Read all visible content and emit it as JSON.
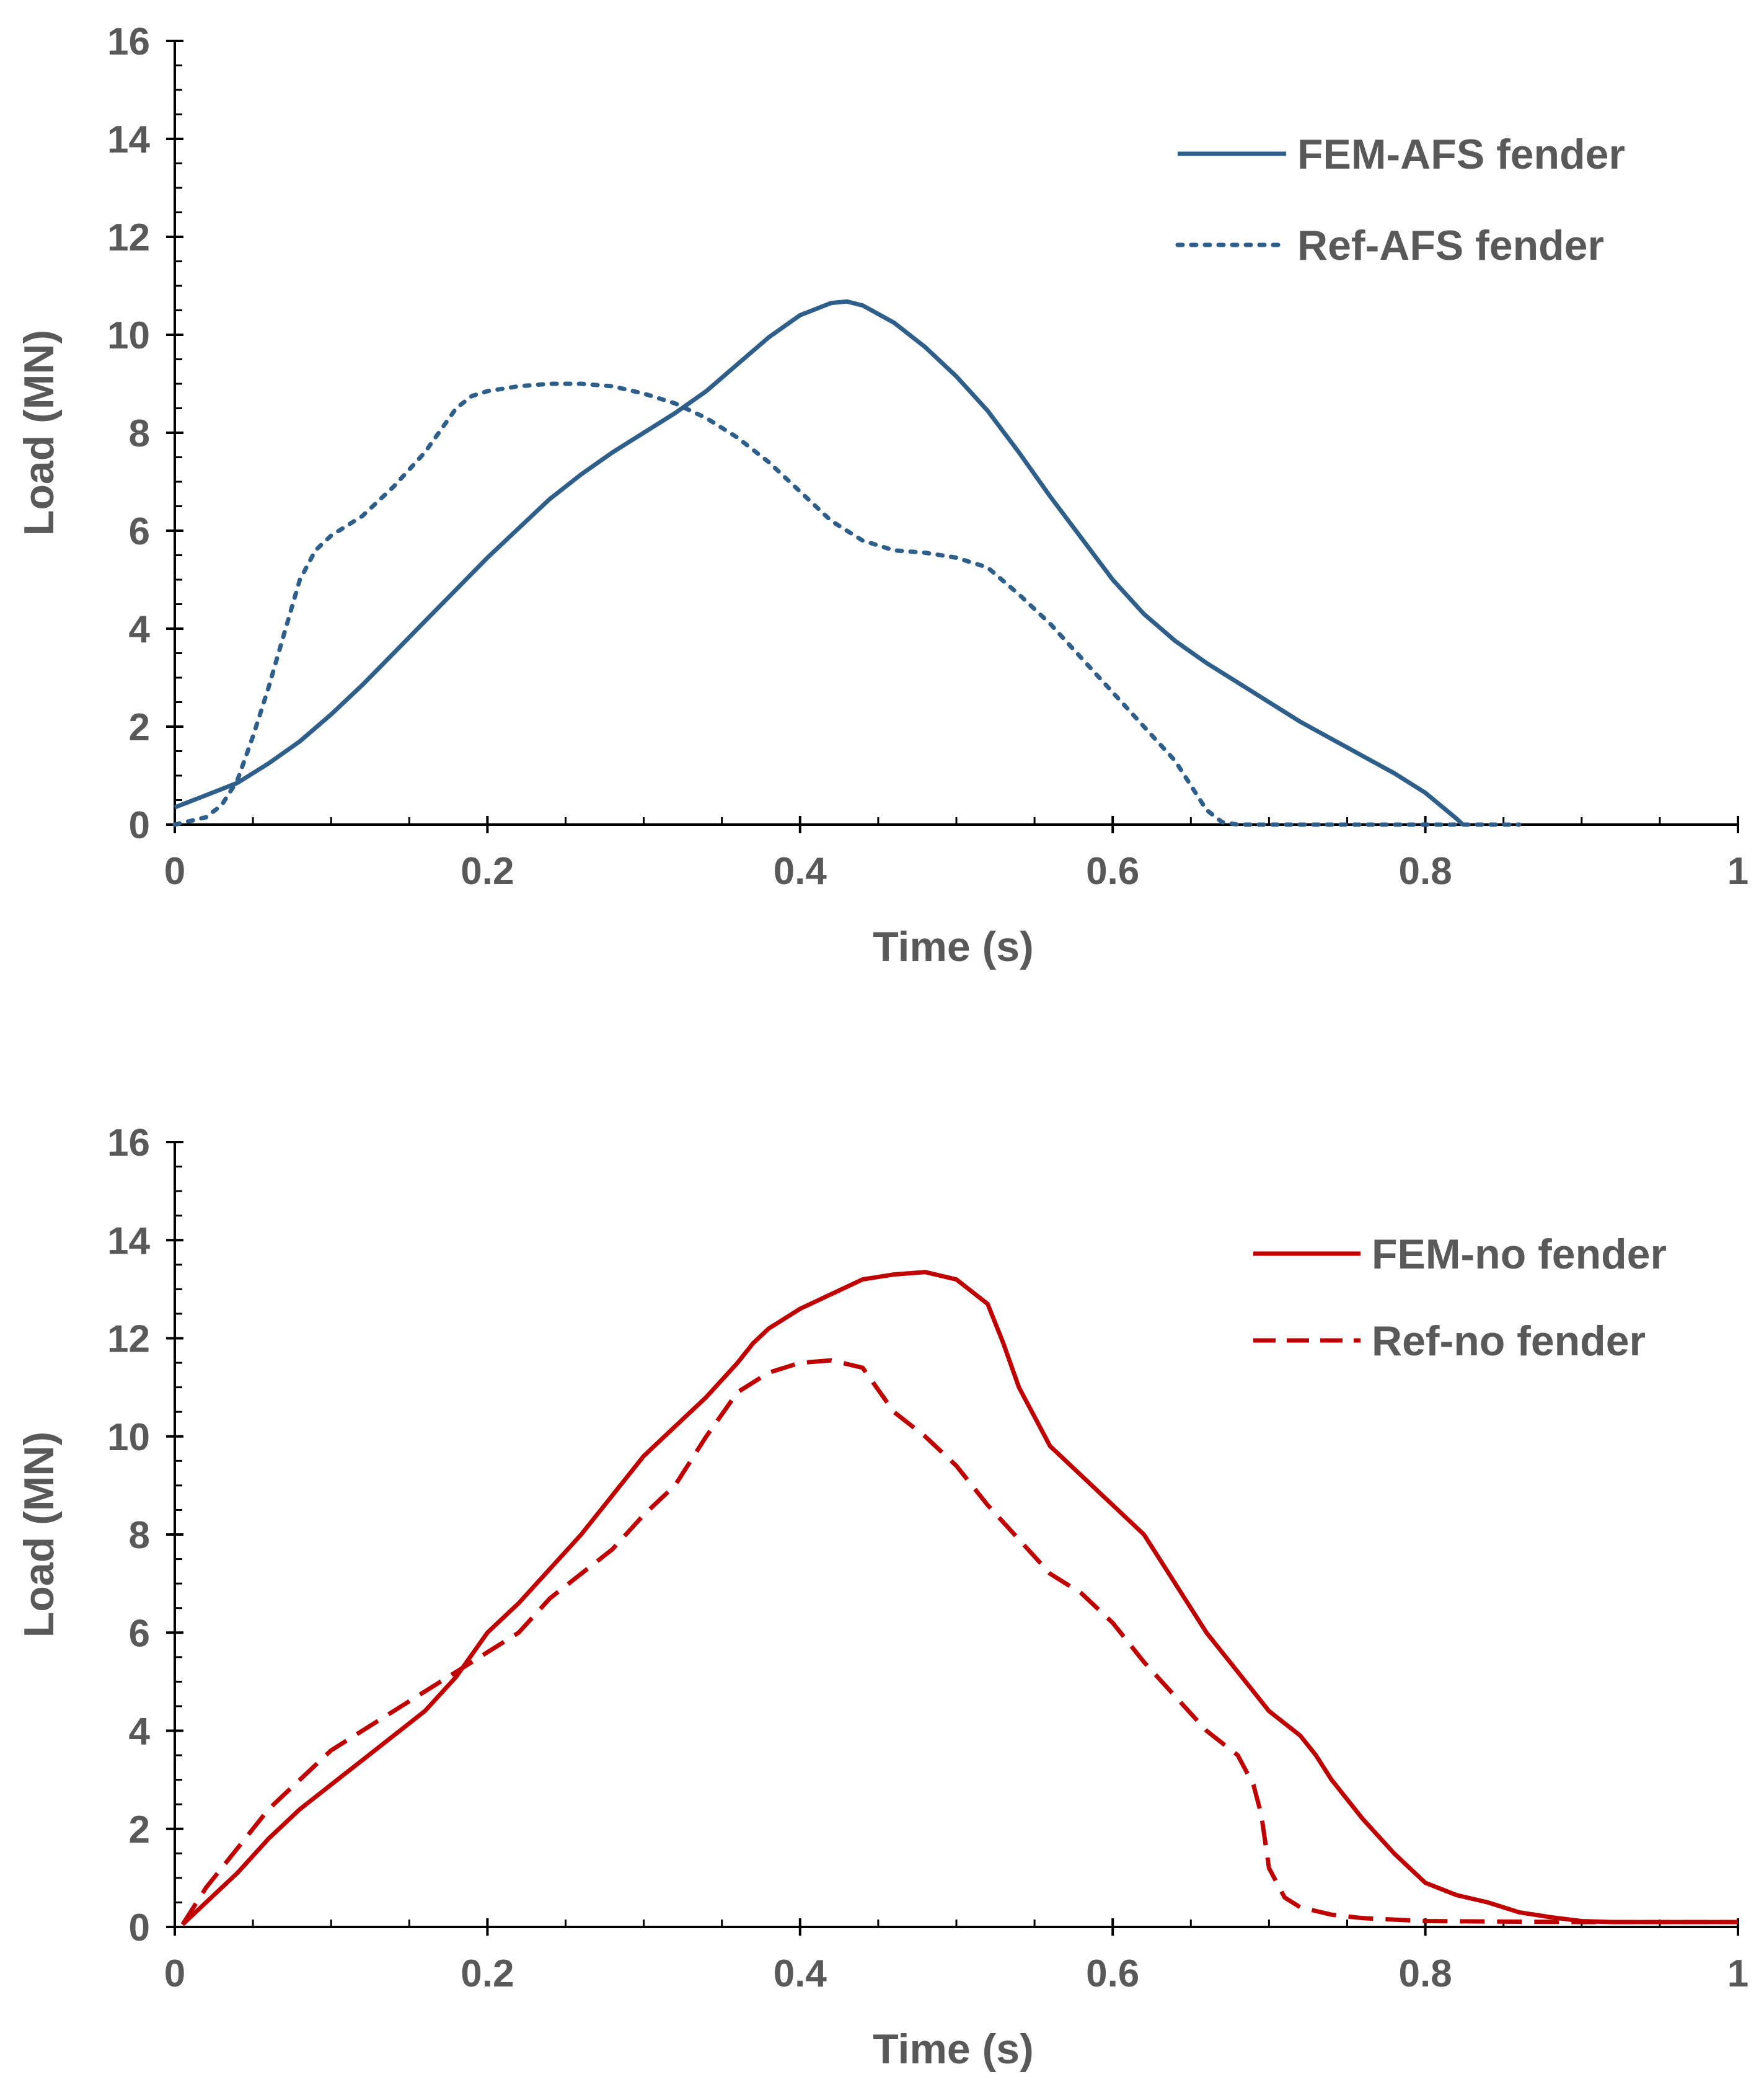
{
  "chart_data": [
    {
      "type": "line",
      "title": "",
      "xlabel": "Time (s)",
      "ylabel": "Load (MN)",
      "xlim": [
        0,
        1
      ],
      "ylim": [
        0,
        16
      ],
      "x_ticks": [
        "0",
        "0.2",
        "0.4",
        "0.6",
        "0.8",
        "1"
      ],
      "y_ticks": [
        "0",
        "2",
        "4",
        "6",
        "8",
        "10",
        "12",
        "14",
        "16"
      ],
      "grid": false,
      "legend_position": "top-right",
      "series": [
        {
          "name": "FEM-AFS fender",
          "style": "solid",
          "color": "#2E5F8A",
          "x": [
            0,
            0.02,
            0.04,
            0.06,
            0.08,
            0.1,
            0.12,
            0.14,
            0.16,
            0.18,
            0.2,
            0.22,
            0.24,
            0.26,
            0.28,
            0.3,
            0.32,
            0.34,
            0.36,
            0.38,
            0.4,
            0.42,
            0.43,
            0.44,
            0.46,
            0.48,
            0.5,
            0.52,
            0.54,
            0.56,
            0.58,
            0.6,
            0.62,
            0.64,
            0.66,
            0.68,
            0.7,
            0.72,
            0.74,
            0.76,
            0.78,
            0.8,
            0.82,
            0.824
          ],
          "y": [
            0.35,
            0.6,
            0.85,
            1.25,
            1.7,
            2.25,
            2.85,
            3.5,
            4.15,
            4.8,
            5.45,
            6.05,
            6.65,
            7.15,
            7.6,
            8.0,
            8.4,
            8.85,
            9.4,
            9.95,
            10.4,
            10.65,
            10.68,
            10.6,
            10.25,
            9.75,
            9.15,
            8.45,
            7.6,
            6.7,
            5.85,
            5.0,
            4.3,
            3.75,
            3.3,
            2.9,
            2.5,
            2.1,
            1.75,
            1.4,
            1.05,
            0.65,
            0.12,
            0.0
          ]
        },
        {
          "name": "Ref-AFS fender",
          "style": "dotted",
          "color": "#2E5F8A",
          "x": [
            0,
            0.02,
            0.03,
            0.04,
            0.05,
            0.06,
            0.07,
            0.08,
            0.09,
            0.1,
            0.12,
            0.14,
            0.16,
            0.18,
            0.19,
            0.2,
            0.22,
            0.24,
            0.26,
            0.28,
            0.3,
            0.32,
            0.34,
            0.36,
            0.38,
            0.4,
            0.42,
            0.44,
            0.46,
            0.48,
            0.5,
            0.52,
            0.54,
            0.56,
            0.58,
            0.6,
            0.62,
            0.64,
            0.65,
            0.66,
            0.67,
            0.68,
            0.7,
            0.75,
            0.8,
            0.86
          ],
          "y": [
            0.0,
            0.15,
            0.4,
            0.9,
            1.8,
            2.8,
            3.9,
            5.0,
            5.6,
            5.9,
            6.3,
            6.9,
            7.6,
            8.5,
            8.75,
            8.85,
            8.95,
            9.0,
            9.0,
            8.95,
            8.8,
            8.6,
            8.3,
            7.9,
            7.4,
            6.8,
            6.2,
            5.8,
            5.6,
            5.55,
            5.45,
            5.25,
            4.7,
            4.1,
            3.4,
            2.7,
            2.0,
            1.3,
            0.8,
            0.3,
            0.05,
            0.0,
            0.0,
            0.0,
            0.0,
            0.0
          ]
        }
      ]
    },
    {
      "type": "line",
      "title": "",
      "xlabel": "Time (s)",
      "ylabel": "Load (MN)",
      "xlim": [
        0,
        1
      ],
      "ylim": [
        0,
        16
      ],
      "x_ticks": [
        "0",
        "0.2",
        "0.4",
        "0.6",
        "0.8",
        "1"
      ],
      "y_ticks": [
        "0",
        "2",
        "4",
        "6",
        "8",
        "10",
        "12",
        "14",
        "16"
      ],
      "grid": false,
      "legend_position": "top-right",
      "series": [
        {
          "name": "FEM-no fender",
          "style": "solid",
          "color": "#C00000",
          "x": [
            0.005,
            0.02,
            0.04,
            0.06,
            0.08,
            0.1,
            0.12,
            0.14,
            0.16,
            0.18,
            0.2,
            0.22,
            0.24,
            0.26,
            0.28,
            0.3,
            0.32,
            0.34,
            0.36,
            0.37,
            0.38,
            0.4,
            0.42,
            0.44,
            0.46,
            0.48,
            0.5,
            0.52,
            0.53,
            0.54,
            0.56,
            0.58,
            0.6,
            0.62,
            0.64,
            0.66,
            0.68,
            0.7,
            0.72,
            0.73,
            0.74,
            0.76,
            0.78,
            0.8,
            0.82,
            0.84,
            0.86,
            0.88,
            0.9,
            0.92,
            0.94,
            1.0
          ],
          "y": [
            0.05,
            0.5,
            1.1,
            1.8,
            2.4,
            2.9,
            3.4,
            3.9,
            4.4,
            5.1,
            6.0,
            6.6,
            7.3,
            8.0,
            8.8,
            9.6,
            10.2,
            10.8,
            11.5,
            11.9,
            12.2,
            12.6,
            12.9,
            13.2,
            13.3,
            13.35,
            13.2,
            12.7,
            11.9,
            11.0,
            9.8,
            9.2,
            8.6,
            8.0,
            7.0,
            6.0,
            5.2,
            4.4,
            3.9,
            3.5,
            3.0,
            2.2,
            1.5,
            0.9,
            0.65,
            0.5,
            0.3,
            0.2,
            0.12,
            0.1,
            0.1,
            0.1
          ]
        },
        {
          "name": "Ref-no fender",
          "style": "dashed",
          "color": "#C00000",
          "x": [
            0.005,
            0.02,
            0.04,
            0.06,
            0.08,
            0.1,
            0.12,
            0.14,
            0.16,
            0.18,
            0.2,
            0.22,
            0.24,
            0.26,
            0.28,
            0.3,
            0.32,
            0.34,
            0.36,
            0.38,
            0.4,
            0.42,
            0.44,
            0.46,
            0.48,
            0.5,
            0.52,
            0.54,
            0.56,
            0.58,
            0.6,
            0.62,
            0.64,
            0.66,
            0.68,
            0.69,
            0.695,
            0.7,
            0.71,
            0.72,
            0.74,
            0.76,
            0.8,
            0.9,
            1.0
          ],
          "y": [
            0.05,
            0.8,
            1.6,
            2.4,
            3.0,
            3.6,
            4.0,
            4.4,
            4.8,
            5.2,
            5.6,
            6.0,
            6.7,
            7.2,
            7.7,
            8.4,
            9.0,
            10.0,
            10.9,
            11.3,
            11.5,
            11.55,
            11.4,
            10.5,
            10.0,
            9.4,
            8.6,
            7.9,
            7.2,
            6.8,
            6.2,
            5.4,
            4.7,
            4.0,
            3.5,
            2.9,
            2.3,
            1.2,
            0.6,
            0.4,
            0.25,
            0.18,
            0.12,
            0.1,
            0.1
          ]
        }
      ]
    }
  ]
}
